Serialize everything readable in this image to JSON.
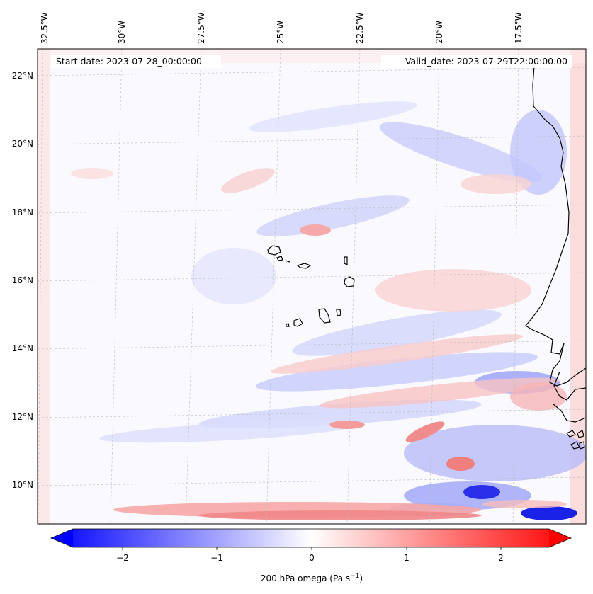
{
  "map": {
    "start_date": "Start date: 2023-07-28_00:00:00",
    "valid_date": "Valid_date: 2023-07-29T22:00:00.00",
    "lon_labels": [
      "32.5°W",
      "30°W",
      "27.5°W",
      "25°W",
      "22.5°W",
      "20°W",
      "17.5°W"
    ],
    "lat_labels": [
      "22°N",
      "20°N",
      "18°N",
      "16°N",
      "14°N",
      "12°N",
      "10°N"
    ],
    "field": "200 hPa omega"
  },
  "colorbar": {
    "label_main": "200 hPa omega (Pa s",
    "label_exp": "−1",
    "label_close": ")",
    "ticks": [
      "−2",
      "−1",
      "0",
      "1",
      "2"
    ],
    "range": [
      -2.7,
      2.7
    ],
    "low_color": "#0000ff",
    "mid_color": "#ffffff",
    "high_color": "#ff0000"
  }
}
